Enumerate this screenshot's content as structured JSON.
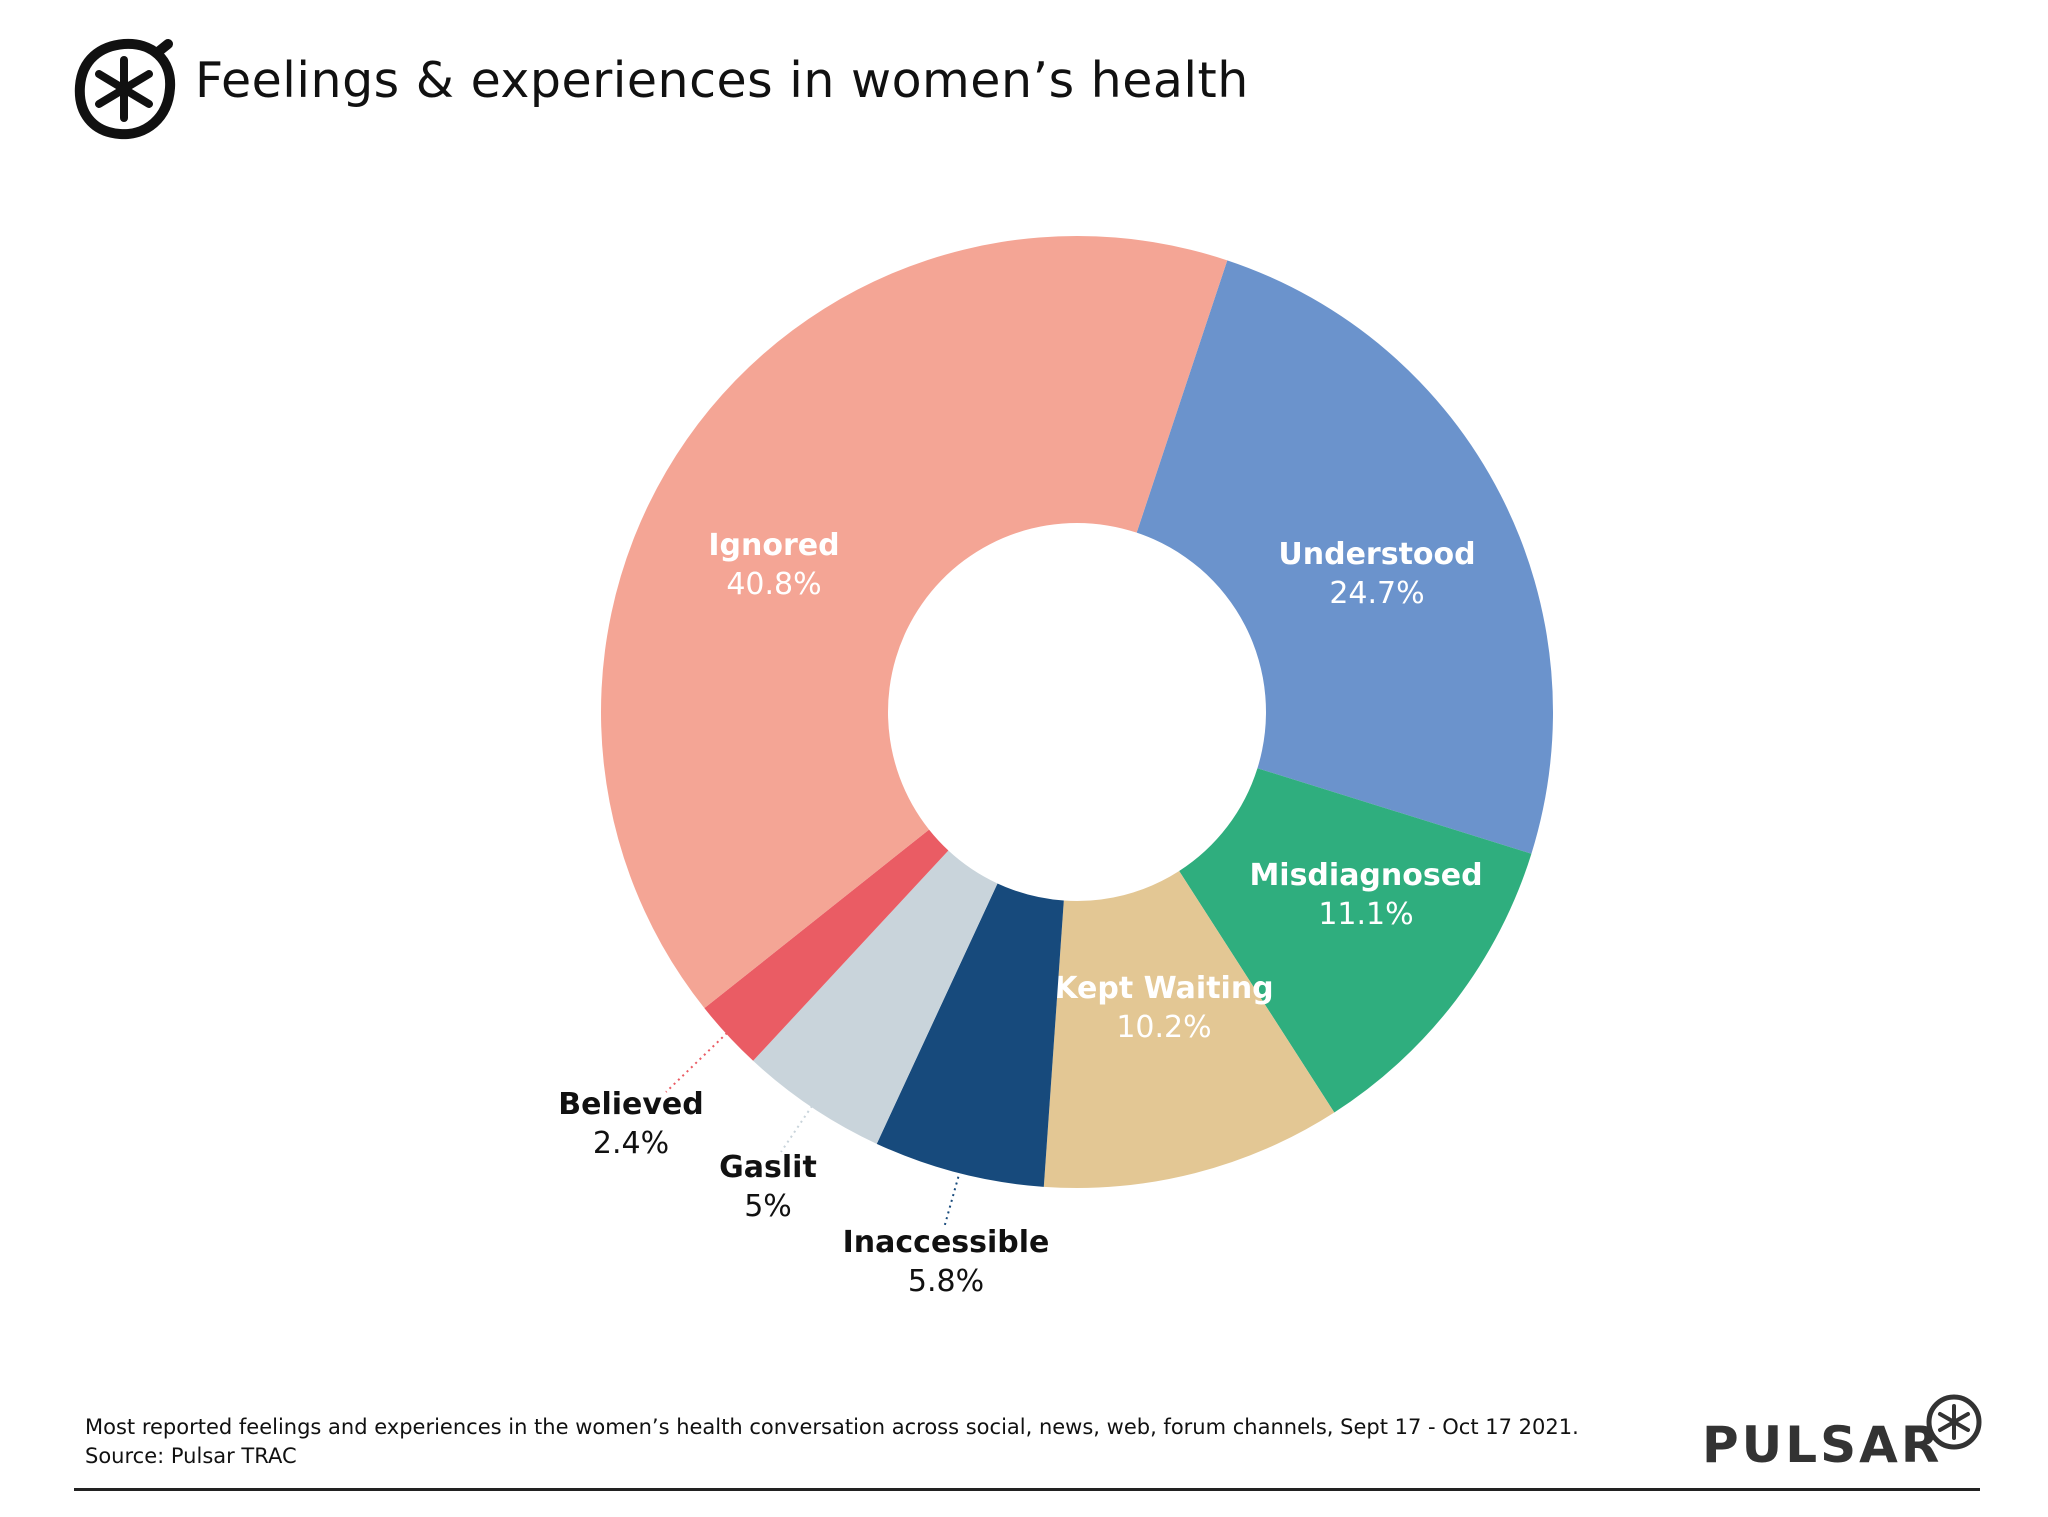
{
  "header": {
    "title": "Feelings & experiences in women’s health",
    "logo_icon": "asterisk-circle-icon"
  },
  "chart_data": {
    "type": "pie",
    "variant": "donut",
    "title": "Feelings & experiences in women’s health",
    "unit": "%",
    "categories": [
      "Understood",
      "Misdiagnosed",
      "Kept Waiting",
      "Inaccessible",
      "Gaslit",
      "Believed",
      "Ignored"
    ],
    "values": [
      24.7,
      11.1,
      10.2,
      5.8,
      5,
      2.4,
      40.8
    ],
    "value_labels": [
      "24.7%",
      "11.1%",
      "10.2%",
      "5.8%",
      "5%",
      "2.4%",
      "40.8%"
    ],
    "colors": [
      "#6B93CC",
      "#2FAE7E",
      "#E3C794",
      "#174A7C",
      "#C9D4DB",
      "#EA5C64",
      "#F4A595"
    ],
    "legend": "none"
  },
  "footer": {
    "note": "Most reported feelings and experiences in the women’s health conversation across social, news, web, forum channels, Sept 17 - Oct 17 2021.",
    "source": "Source: Pulsar TRAC",
    "brand": "PULSAR",
    "brand_icon": "asterisk-circle-icon"
  }
}
